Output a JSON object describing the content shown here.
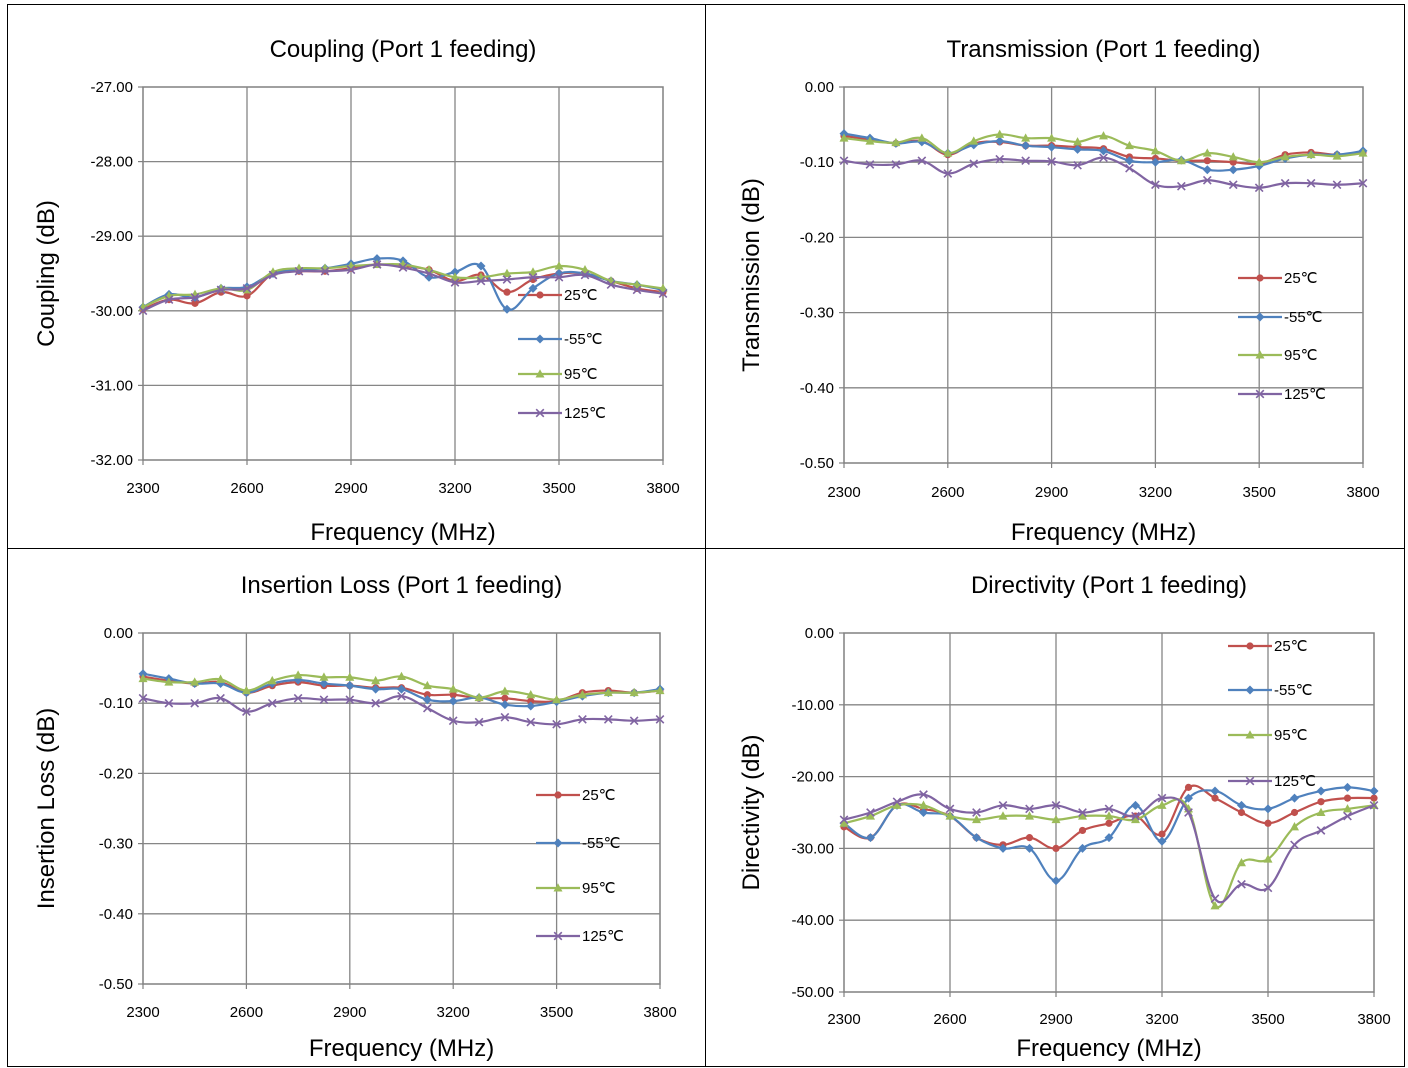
{
  "chart_data": [
    {
      "type": "line",
      "title": "Coupling (Port 1 feeding)",
      "xlabel": "Frequency (MHz)",
      "ylabel": "Coupling (dB)",
      "xlim": [
        2300,
        3800
      ],
      "ylim": [
        -32,
        -27
      ],
      "xticks": [
        "2300",
        "2600",
        "2900",
        "3200",
        "3500",
        "3800"
      ],
      "yticks": [
        "-27.00",
        "-28.00",
        "-29.00",
        "-30.00",
        "-31.00",
        "-32.00"
      ],
      "x": [
        2300,
        2375,
        2450,
        2525,
        2600,
        2675,
        2750,
        2825,
        2900,
        2975,
        3050,
        3125,
        3200,
        3275,
        3350,
        3425,
        3500,
        3575,
        3650,
        3725,
        3800
      ],
      "legend_position": "right-inside",
      "series": [
        {
          "name": "25℃",
          "color": "#c0504d",
          "marker": "circle",
          "values": [
            -29.98,
            -29.85,
            -29.9,
            -29.75,
            -29.8,
            -29.5,
            -29.47,
            -29.47,
            -29.43,
            -29.38,
            -29.4,
            -29.45,
            -29.6,
            -29.52,
            -29.75,
            -29.58,
            -29.5,
            -29.5,
            -29.6,
            -29.7,
            -29.75
          ]
        },
        {
          "name": "-55℃",
          "color": "#4f81bd",
          "marker": "diamond",
          "values": [
            -29.95,
            -29.78,
            -29.82,
            -29.7,
            -29.68,
            -29.5,
            -29.45,
            -29.43,
            -29.37,
            -29.3,
            -29.33,
            -29.55,
            -29.48,
            -29.4,
            -29.98,
            -29.7,
            -29.5,
            -29.5,
            -29.6,
            -29.65,
            -29.72
          ]
        },
        {
          "name": "95℃",
          "color": "#9bbb59",
          "marker": "triangle",
          "values": [
            -29.95,
            -29.8,
            -29.78,
            -29.7,
            -29.72,
            -29.48,
            -29.43,
            -29.43,
            -29.4,
            -29.38,
            -29.38,
            -29.45,
            -29.55,
            -29.55,
            -29.5,
            -29.48,
            -29.4,
            -29.45,
            -29.6,
            -29.65,
            -29.7
          ]
        },
        {
          "name": "125℃",
          "color": "#8064a2",
          "marker": "x",
          "values": [
            -30.0,
            -29.85,
            -29.82,
            -29.72,
            -29.7,
            -29.52,
            -29.47,
            -29.47,
            -29.45,
            -29.38,
            -29.42,
            -29.5,
            -29.62,
            -29.6,
            -29.58,
            -29.55,
            -29.55,
            -29.52,
            -29.65,
            -29.72,
            -29.77
          ]
        }
      ],
      "legend_entries": [
        "25℃",
        "-55℃",
        "95℃",
        "125℃"
      ]
    },
    {
      "type": "line",
      "title": "Transmission (Port 1 feeding)",
      "xlabel": "Frequency (MHz)",
      "ylabel": "Transmission (dB)",
      "xlim": [
        2300,
        3800
      ],
      "ylim": [
        -0.5,
        0
      ],
      "xticks": [
        "2300",
        "2600",
        "2900",
        "3200",
        "3500",
        "3800"
      ],
      "yticks": [
        "0.00",
        "-0.10",
        "-0.20",
        "-0.30",
        "-0.40",
        "-0.50"
      ],
      "x": [
        2300,
        2375,
        2450,
        2525,
        2600,
        2675,
        2750,
        2825,
        2900,
        2975,
        3050,
        3125,
        3200,
        3275,
        3350,
        3425,
        3500,
        3575,
        3650,
        3725,
        3800
      ],
      "legend_position": "right-inside",
      "series": [
        {
          "name": "25℃",
          "color": "#c0504d",
          "marker": "circle",
          "values": [
            -0.065,
            -0.07,
            -0.075,
            -0.072,
            -0.09,
            -0.075,
            -0.073,
            -0.078,
            -0.078,
            -0.08,
            -0.082,
            -0.093,
            -0.095,
            -0.098,
            -0.098,
            -0.1,
            -0.102,
            -0.09,
            -0.087,
            -0.09,
            -0.087
          ]
        },
        {
          "name": "-55℃",
          "color": "#4f81bd",
          "marker": "diamond",
          "values": [
            -0.062,
            -0.068,
            -0.075,
            -0.073,
            -0.088,
            -0.077,
            -0.072,
            -0.078,
            -0.08,
            -0.083,
            -0.085,
            -0.098,
            -0.1,
            -0.097,
            -0.11,
            -0.11,
            -0.105,
            -0.095,
            -0.09,
            -0.09,
            -0.085
          ]
        },
        {
          "name": "95℃",
          "color": "#9bbb59",
          "marker": "triangle",
          "values": [
            -0.068,
            -0.072,
            -0.074,
            -0.068,
            -0.088,
            -0.072,
            -0.063,
            -0.068,
            -0.068,
            -0.073,
            -0.065,
            -0.078,
            -0.085,
            -0.098,
            -0.088,
            -0.093,
            -0.1,
            -0.093,
            -0.09,
            -0.092,
            -0.088
          ]
        },
        {
          "name": "125℃",
          "color": "#8064a2",
          "marker": "x",
          "values": [
            -0.098,
            -0.103,
            -0.103,
            -0.098,
            -0.115,
            -0.102,
            -0.096,
            -0.098,
            -0.099,
            -0.104,
            -0.094,
            -0.108,
            -0.13,
            -0.132,
            -0.124,
            -0.13,
            -0.134,
            -0.128,
            -0.128,
            -0.13,
            -0.128
          ]
        }
      ],
      "legend_entries": [
        "25℃",
        "-55℃",
        "95℃",
        "125℃"
      ]
    },
    {
      "type": "line",
      "title": "Insertion Loss (Port 1 feeding)",
      "xlabel": "Frequency (MHz)",
      "ylabel": "Insertion Loss (dB)",
      "xlim": [
        2300,
        3800
      ],
      "ylim": [
        -0.5,
        0
      ],
      "xticks": [
        "2300",
        "2600",
        "2900",
        "3200",
        "3500",
        "3800"
      ],
      "yticks": [
        "0.00",
        "-0.10",
        "-0.20",
        "-0.30",
        "-0.40",
        "-0.50"
      ],
      "x": [
        2300,
        2375,
        2450,
        2525,
        2600,
        2675,
        2750,
        2825,
        2900,
        2975,
        3050,
        3125,
        3200,
        3275,
        3350,
        3425,
        3500,
        3575,
        3650,
        3725,
        3800
      ],
      "legend_position": "right-inside",
      "series": [
        {
          "name": "25℃",
          "color": "#c0504d",
          "marker": "circle",
          "values": [
            -0.062,
            -0.068,
            -0.072,
            -0.07,
            -0.085,
            -0.075,
            -0.07,
            -0.075,
            -0.075,
            -0.078,
            -0.078,
            -0.088,
            -0.088,
            -0.093,
            -0.093,
            -0.097,
            -0.097,
            -0.085,
            -0.082,
            -0.085,
            -0.082
          ]
        },
        {
          "name": "-55℃",
          "color": "#4f81bd",
          "marker": "diamond",
          "values": [
            -0.058,
            -0.065,
            -0.072,
            -0.072,
            -0.085,
            -0.072,
            -0.067,
            -0.072,
            -0.075,
            -0.08,
            -0.08,
            -0.095,
            -0.097,
            -0.092,
            -0.102,
            -0.104,
            -0.098,
            -0.09,
            -0.085,
            -0.085,
            -0.08
          ]
        },
        {
          "name": "95℃",
          "color": "#9bbb59",
          "marker": "triangle",
          "values": [
            -0.065,
            -0.07,
            -0.07,
            -0.066,
            -0.082,
            -0.068,
            -0.06,
            -0.063,
            -0.063,
            -0.068,
            -0.062,
            -0.075,
            -0.08,
            -0.092,
            -0.083,
            -0.088,
            -0.095,
            -0.088,
            -0.085,
            -0.085,
            -0.082
          ]
        },
        {
          "name": "125℃",
          "color": "#8064a2",
          "marker": "x",
          "values": [
            -0.093,
            -0.1,
            -0.1,
            -0.093,
            -0.112,
            -0.1,
            -0.093,
            -0.095,
            -0.095,
            -0.1,
            -0.09,
            -0.107,
            -0.125,
            -0.127,
            -0.12,
            -0.127,
            -0.13,
            -0.123,
            -0.123,
            -0.125,
            -0.123
          ]
        }
      ],
      "legend_entries": [
        "25℃",
        "-55℃",
        "95℃",
        "125℃"
      ]
    },
    {
      "type": "line",
      "title": "Directivity (Port 1 feeding)",
      "xlabel": "Frequency (MHz)",
      "ylabel": "Directivity (dB)",
      "xlim": [
        2300,
        3800
      ],
      "ylim": [
        -50,
        0
      ],
      "xticks": [
        "2300",
        "2600",
        "2900",
        "3200",
        "3500",
        "3800"
      ],
      "yticks": [
        "0.00",
        "-10.00",
        "-20.00",
        "-30.00",
        "-40.00",
        "-50.00"
      ],
      "x": [
        2300,
        2375,
        2450,
        2525,
        2600,
        2675,
        2750,
        2825,
        2900,
        2975,
        3050,
        3125,
        3200,
        3275,
        3350,
        3425,
        3500,
        3575,
        3650,
        3725,
        3800
      ],
      "legend_position": "top-right-inside",
      "series": [
        {
          "name": "25℃",
          "color": "#c0504d",
          "marker": "circle",
          "values": [
            -27.0,
            -28.5,
            -24.0,
            -24.5,
            -25.5,
            -28.5,
            -29.5,
            -28.5,
            -30.0,
            -27.5,
            -26.5,
            -25.5,
            -28.0,
            -21.5,
            -23.0,
            -25.0,
            -26.5,
            -25.0,
            -23.5,
            -23.0,
            -23.0
          ]
        },
        {
          "name": "-55℃",
          "color": "#4f81bd",
          "marker": "diamond",
          "values": [
            -26.5,
            -28.5,
            -24.0,
            -25.0,
            -25.5,
            -28.5,
            -30.0,
            -30.0,
            -34.5,
            -30.0,
            -28.5,
            -24.0,
            -29.0,
            -23.0,
            -22.0,
            -24.0,
            -24.5,
            -23.0,
            -22.0,
            -21.5,
            -22.0
          ]
        },
        {
          "name": "95℃",
          "color": "#9bbb59",
          "marker": "triangle",
          "values": [
            -26.5,
            -25.5,
            -24.0,
            -24.0,
            -25.5,
            -26.0,
            -25.5,
            -25.5,
            -26.0,
            -25.5,
            -25.5,
            -26.0,
            -24.0,
            -24.5,
            -38.0,
            -32.0,
            -31.5,
            -27.0,
            -25.0,
            -24.5,
            -24.0
          ]
        },
        {
          "name": "125℃",
          "color": "#8064a2",
          "marker": "x",
          "values": [
            -26.0,
            -25.0,
            -23.5,
            -22.5,
            -24.5,
            -25.0,
            -24.0,
            -24.5,
            -24.0,
            -25.0,
            -24.5,
            -25.5,
            -23.0,
            -25.0,
            -37.0,
            -35.0,
            -35.5,
            -29.5,
            -27.5,
            -25.5,
            -24.0
          ]
        }
      ],
      "legend_entries": [
        "25℃",
        "-55℃",
        "95℃",
        "125℃"
      ]
    }
  ]
}
